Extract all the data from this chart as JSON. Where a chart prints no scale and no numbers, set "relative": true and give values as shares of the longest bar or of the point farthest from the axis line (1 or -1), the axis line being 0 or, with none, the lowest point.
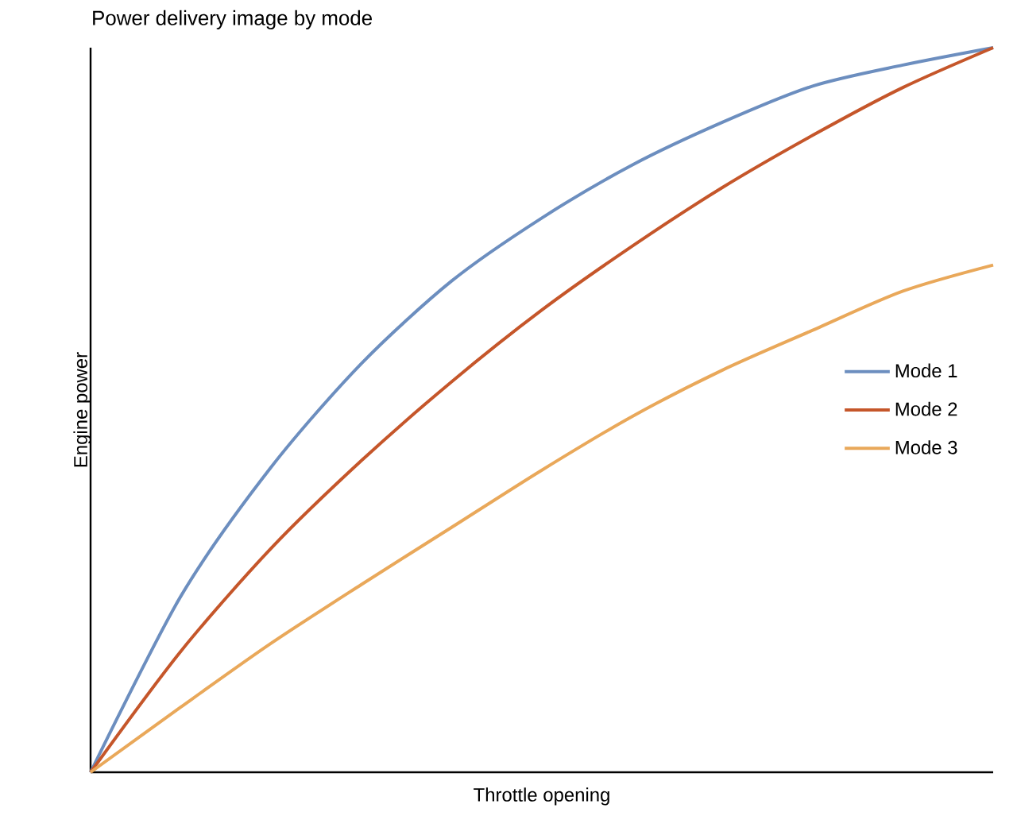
{
  "chart_data": {
    "type": "line",
    "title": "Power delivery image by mode",
    "xlabel": "Throttle opening",
    "ylabel": "Engine power",
    "relative": true,
    "categories": [
      null,
      null,
      null,
      null,
      null,
      null,
      null,
      null,
      null,
      null,
      null
    ],
    "series": [
      {
        "name": "Mode 1",
        "color": "#6c8ebf",
        "values": [
          0,
          0.243,
          0.421,
          0.564,
          0.678,
          0.765,
          0.838,
          0.897,
          0.947,
          0.976,
          1
        ]
      },
      {
        "name": "Mode 2",
        "color": "#c5562a",
        "values": [
          0,
          0.167,
          0.309,
          0.43,
          0.539,
          0.638,
          0.726,
          0.807,
          0.879,
          0.945,
          1
        ]
      },
      {
        "name": "Mode 3",
        "color": "#e9a85a",
        "values": [
          0,
          0.09,
          0.178,
          0.259,
          0.338,
          0.417,
          0.491,
          0.555,
          0.61,
          0.664,
          0.7
        ]
      }
    ],
    "legend": "right",
    "marker": "none",
    "line_style": "solid"
  }
}
